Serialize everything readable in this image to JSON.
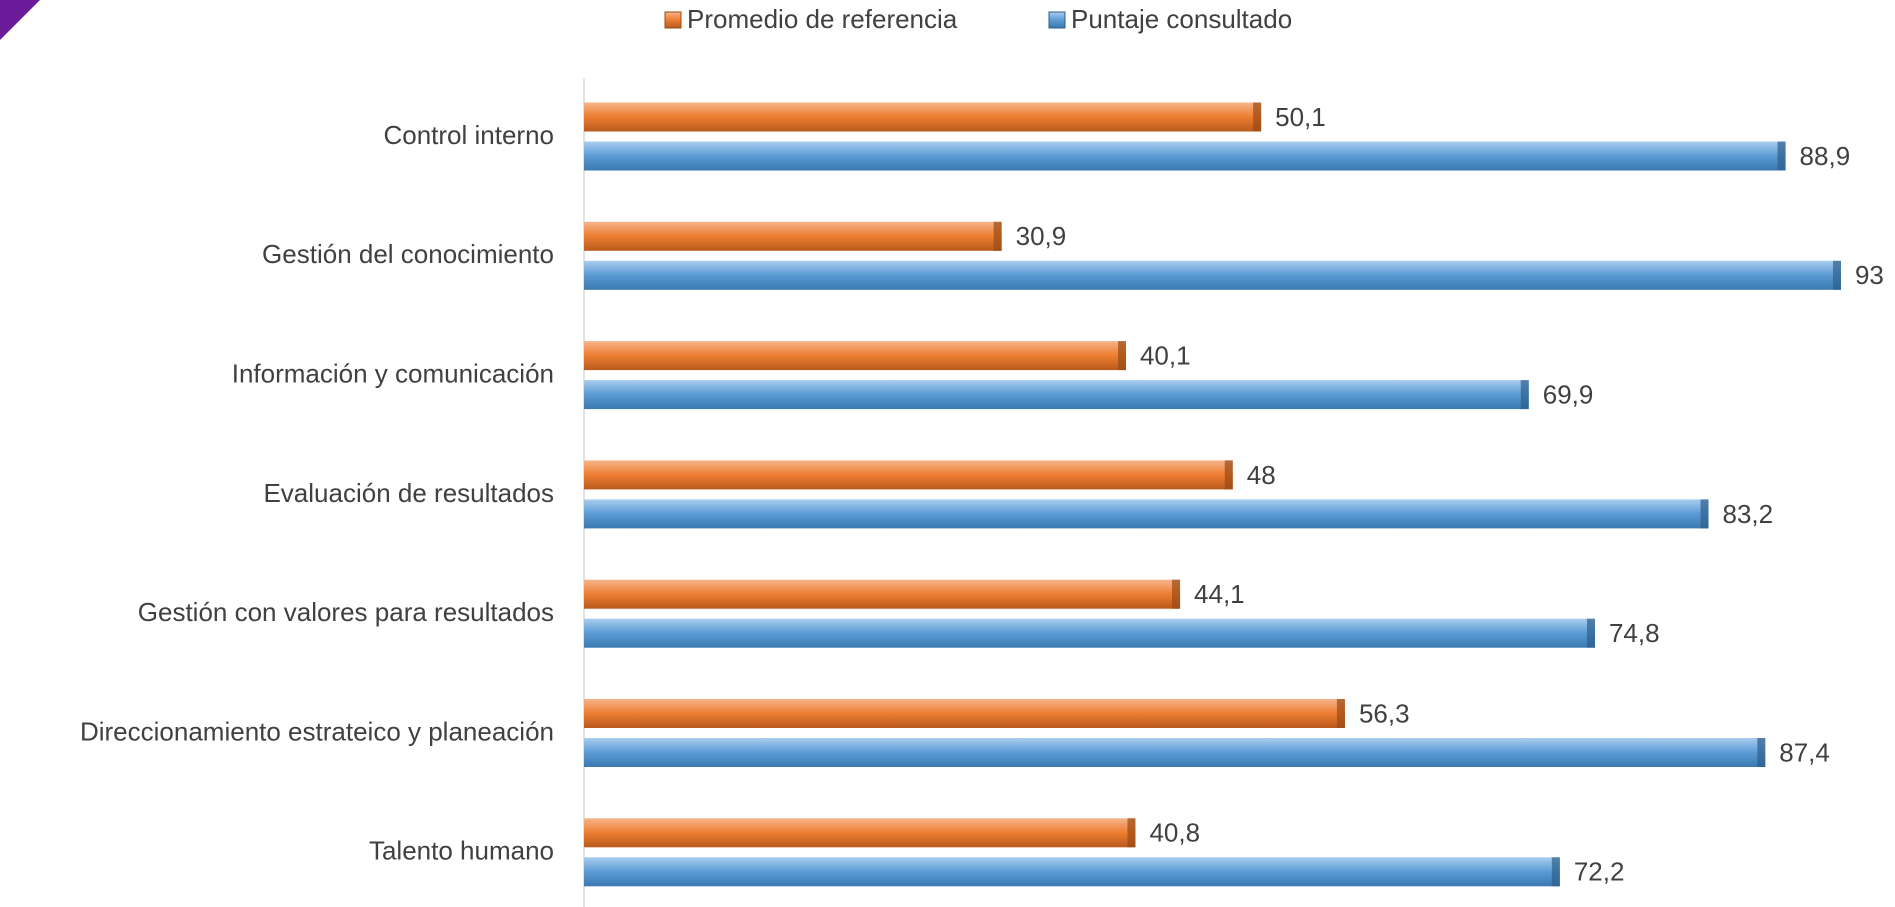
{
  "chart_data": {
    "type": "bar",
    "orientation": "horizontal",
    "categories": [
      "Control interno",
      "Gestión del conocimiento",
      "Información y comunicación",
      "Evaluación de resultados",
      "Gestión con valores para resultados",
      "Direccionamiento estrateico y planeación",
      "Talento humano"
    ],
    "series": [
      {
        "name": "Promedio de referencia",
        "color": "#ed7d31",
        "values": [
          50.1,
          30.9,
          40.1,
          48,
          44.1,
          56.3,
          40.8
        ],
        "value_labels": [
          "50,1",
          "30,9",
          "40,1",
          "48",
          "44,1",
          "56,3",
          "40,8"
        ]
      },
      {
        "name": "Puntaje consultado",
        "color": "#5b9bd5",
        "values": [
          88.9,
          93,
          69.9,
          83.2,
          74.8,
          87.4,
          72.2
        ],
        "value_labels": [
          "88,9",
          "93",
          "69,9",
          "83,2",
          "74,8",
          "87,4",
          "72,2"
        ]
      }
    ],
    "xlim": [
      0,
      95
    ],
    "legend": "top"
  }
}
